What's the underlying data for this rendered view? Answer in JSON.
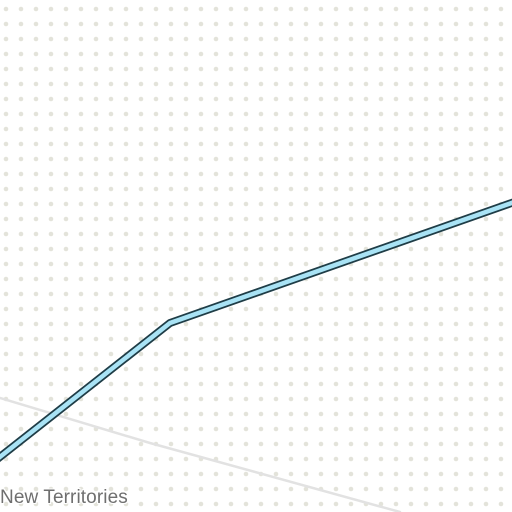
{
  "map": {
    "place_label": "New Territories",
    "colors": {
      "background": "#ffffff",
      "terrain_dots": "#e3e3da",
      "minor_road": "#e2e2e2",
      "highway_fill": "#a9e3f5",
      "highway_casing": "#1f3d47",
      "label_text": "#6f6f6f"
    }
  }
}
